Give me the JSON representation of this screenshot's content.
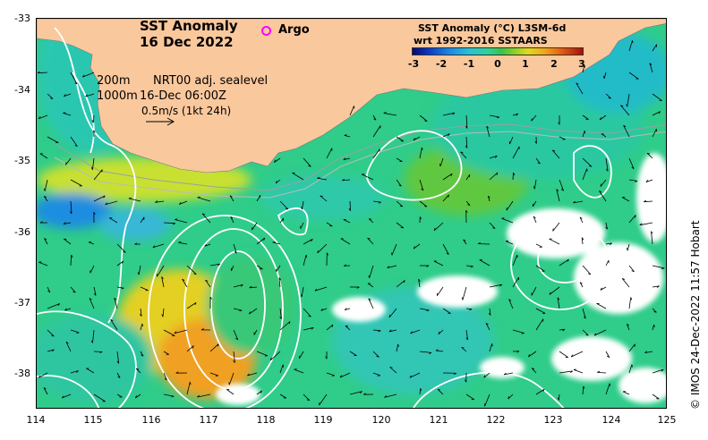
{
  "title": "SST Anomaly",
  "date": "16 Dec 2022",
  "argo_label": "Argo",
  "contour_200m": "200m",
  "contour_1000m": "1000m",
  "product": "NRT00 adj. sealevel",
  "time": "16-Dec 06:00Z",
  "vector_scale": "0.5m/s (1kt 24h)",
  "colorbar": {
    "title": "SST Anomaly (°C) L3SM-6d",
    "subtitle": "wrt 1992-2016 SSTAARS",
    "ticks": [
      "-3",
      "-2",
      "-1",
      "0",
      "1",
      "2",
      "3"
    ]
  },
  "axes": {
    "lon_ticks": [
      "114",
      "115",
      "116",
      "117",
      "118",
      "119",
      "120",
      "121",
      "122",
      "123",
      "124",
      "125"
    ],
    "lat_ticks": [
      "-33",
      "-34",
      "-35",
      "-36",
      "-37",
      "-38"
    ],
    "lon_range": [
      114,
      125
    ],
    "lat_range": [
      -38.5,
      -33
    ]
  },
  "credit": "© IMOS 24-Dec-2022 11:57 Hobart",
  "colors": {
    "land": "#fac89d",
    "ocean_base": "#2fcc8a",
    "warm_anomaly": "#e8a020",
    "cool_anomaly": "#1f8de0",
    "contour": "#ffffff",
    "argo": "#ff00ff"
  }
}
